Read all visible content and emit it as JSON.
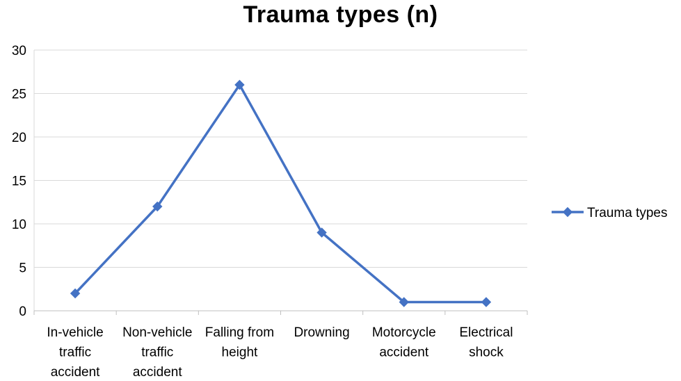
{
  "chart_data": {
    "type": "line",
    "title": "Trauma types (n)",
    "xlabel": "",
    "ylabel": "",
    "categories": [
      "In-vehicle traffic accident",
      "Non-vehicle traffic accident",
      "Falling from height",
      "Drowning",
      "Motorcycle accident",
      "Electrical shock"
    ],
    "category_lines": [
      [
        "In-vehicle",
        "traffic",
        "accident"
      ],
      [
        "Non-vehicle",
        "traffic",
        "accident"
      ],
      [
        "Falling from",
        "height"
      ],
      [
        "Drowning"
      ],
      [
        "Motorcycle",
        "accident"
      ],
      [
        "Electrical",
        "shock"
      ]
    ],
    "series": [
      {
        "name": "Trauma types",
        "values": [
          2,
          12,
          26,
          9,
          1,
          1
        ],
        "color": "#4472C4",
        "marker": "diamond"
      }
    ],
    "ylim": [
      0,
      30
    ],
    "yticks": [
      "0",
      "5",
      "10",
      "15",
      "20",
      "25",
      "30"
    ],
    "grid": true,
    "legend_position": "right"
  }
}
